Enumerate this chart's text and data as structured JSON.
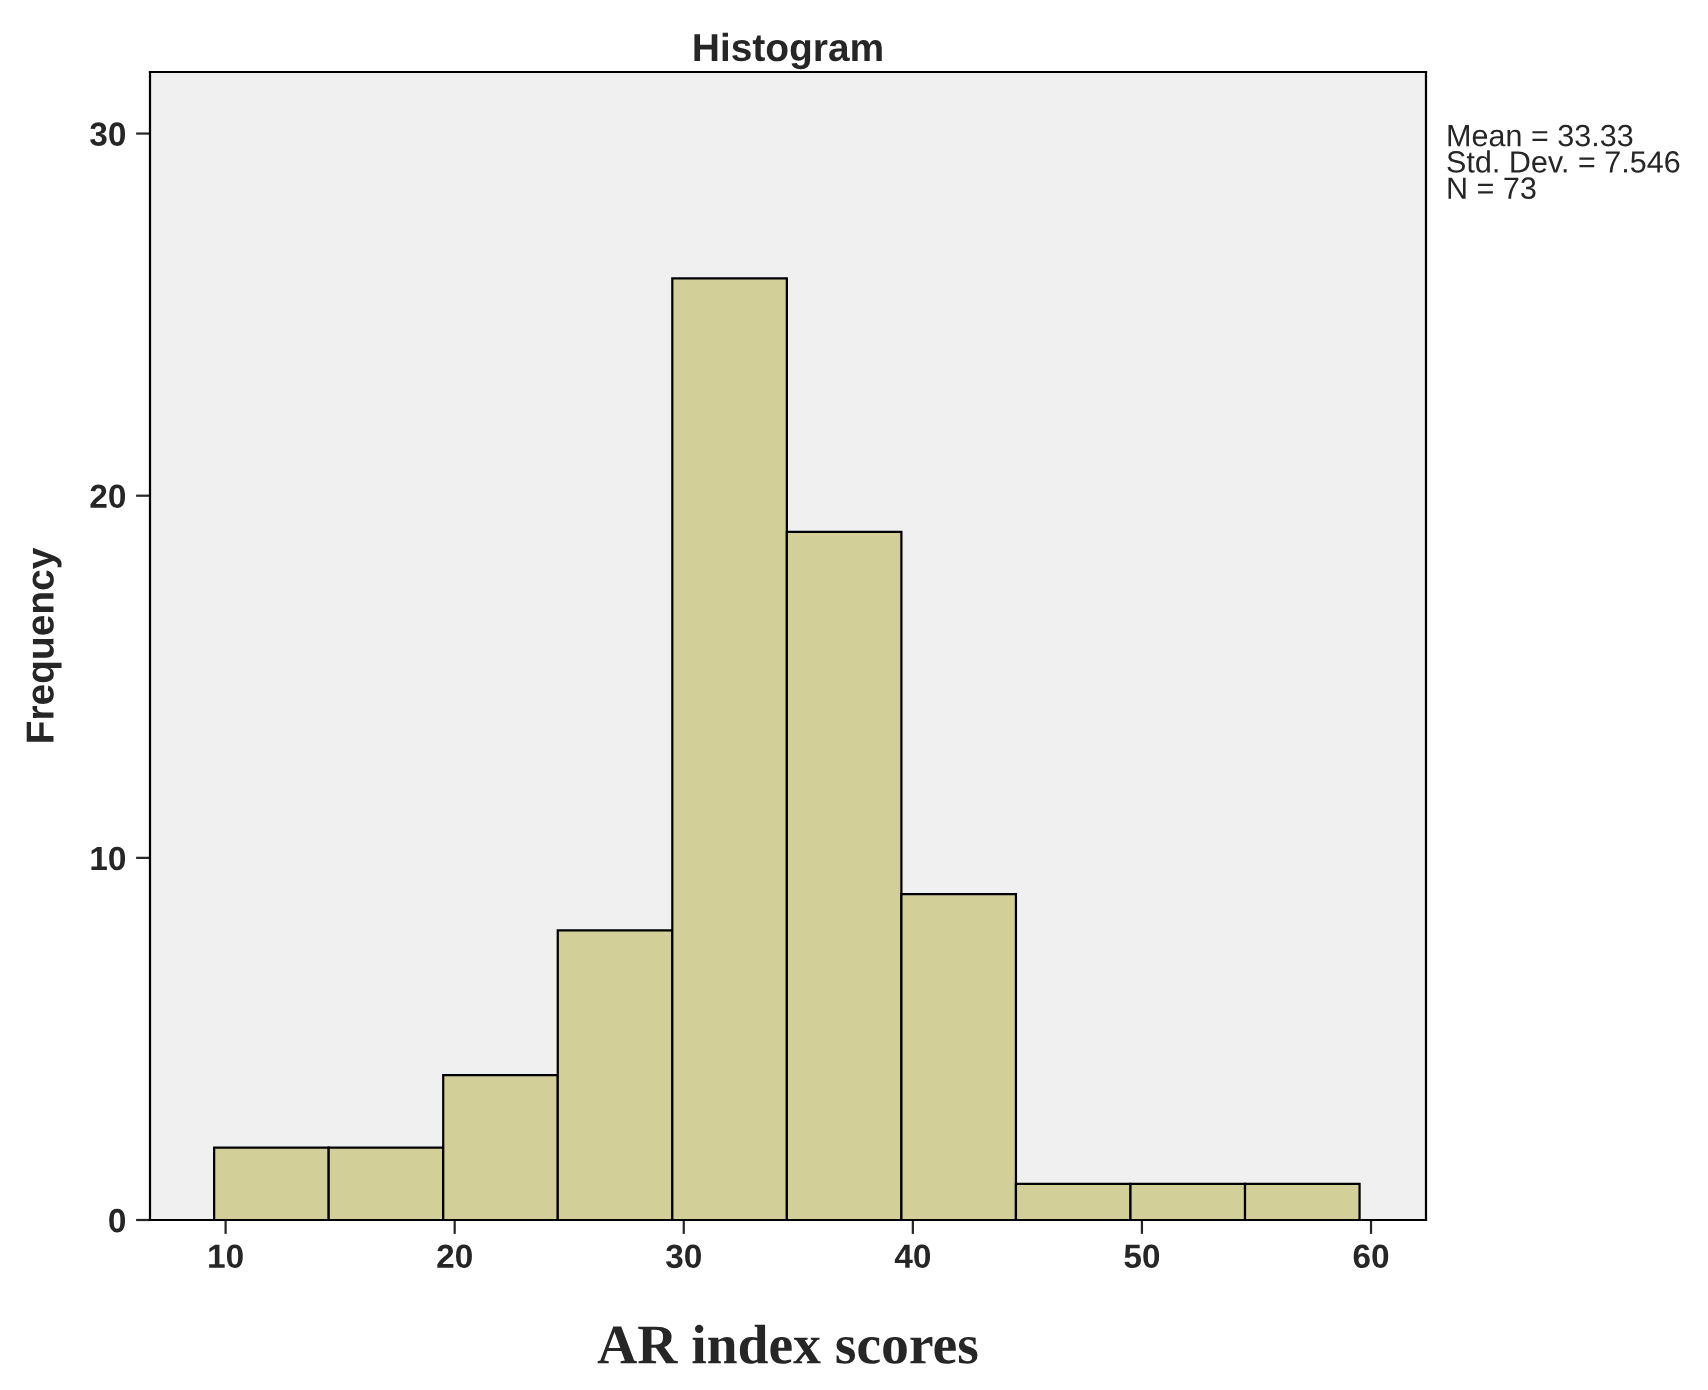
{
  "chart_data": {
    "type": "histogram",
    "title": "Histogram",
    "xlabel": "AR index scores",
    "ylabel": "Frequency",
    "bins": [
      9.5,
      14.5,
      19.5,
      24.5,
      29.5,
      34.5,
      39.5,
      44.5,
      49.5,
      54.5,
      59.5
    ],
    "values": [
      2,
      2,
      4,
      8,
      26,
      19,
      9,
      1,
      1,
      1
    ],
    "color": "#d3cf99",
    "xlim": [
      6.7,
      62.4
    ],
    "xticks": [
      10,
      20,
      30,
      40,
      50,
      60
    ],
    "ylim": [
      0,
      31.7
    ],
    "yticks": [
      0,
      10,
      20,
      30
    ],
    "grid": false,
    "annotations": [
      "Mean = 33.33\nStd. Dev. = 7.546\nN = 73"
    ]
  }
}
